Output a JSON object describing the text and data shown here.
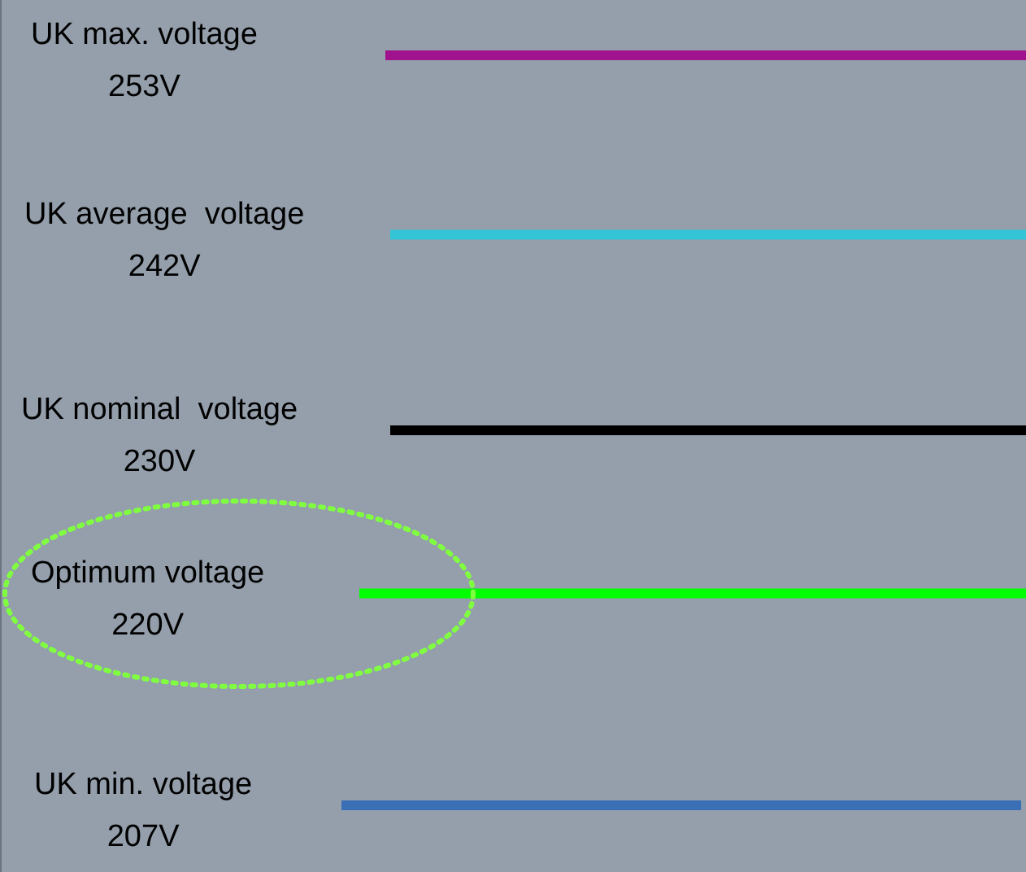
{
  "chart_data": {
    "type": "other",
    "categories": [
      "UK max. voltage",
      "UK average  voltage",
      "UK nominal  voltage",
      "Optimum voltage",
      "UK min. voltage"
    ],
    "values": [
      253,
      242,
      230,
      220,
      207
    ],
    "value_labels": [
      "253V",
      "242V",
      "230V",
      "220V",
      "207V"
    ],
    "colors": [
      "#a0128e",
      "#33c5d6",
      "#000000",
      "#00ff00",
      "#3a6fb5"
    ]
  }
}
